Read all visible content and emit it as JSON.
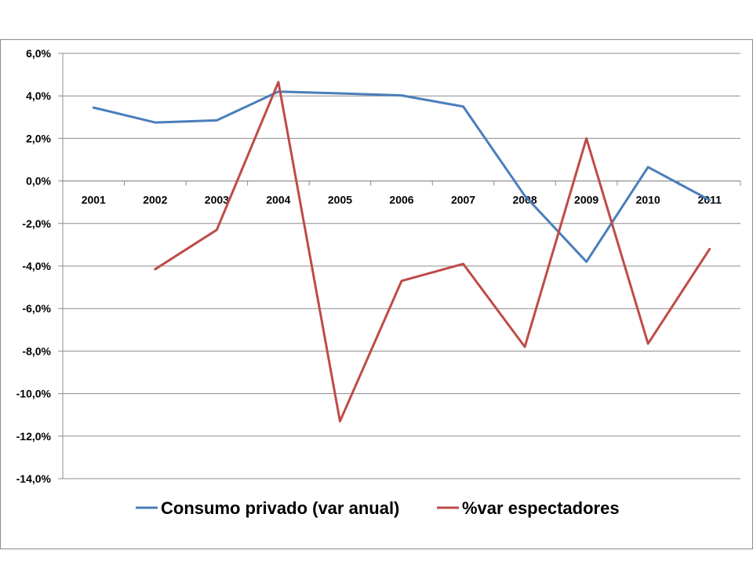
{
  "chart_data": {
    "type": "line",
    "title": "",
    "xlabel": "",
    "ylabel": "",
    "categories": [
      "2001",
      "2002",
      "2003",
      "2004",
      "2005",
      "2006",
      "2007",
      "2008",
      "2009",
      "2010",
      "2011"
    ],
    "ylim": [
      -14,
      6
    ],
    "ystep": 2,
    "ytick_labels": [
      "6,0%",
      "4,0%",
      "2,0%",
      "0,0%",
      "-2,0%",
      "-4,0%",
      "-6,0%",
      "-8,0%",
      "-10,0%",
      "-12,0%",
      "-14,0%"
    ],
    "grid": true,
    "legend_position": "bottom",
    "series": [
      {
        "name": "Consumo privado (var anual)",
        "color": "#4a7ebb",
        "values": [
          3.45,
          2.75,
          2.85,
          4.2,
          4.12,
          4.02,
          3.5,
          -0.7,
          -3.8,
          0.65,
          -0.9
        ]
      },
      {
        "name": "%var espectadores",
        "color": "#be4b48",
        "values": [
          null,
          -4.15,
          -2.3,
          4.65,
          -11.3,
          -4.7,
          -3.9,
          -7.8,
          2.0,
          -7.65,
          -3.2
        ]
      }
    ]
  }
}
